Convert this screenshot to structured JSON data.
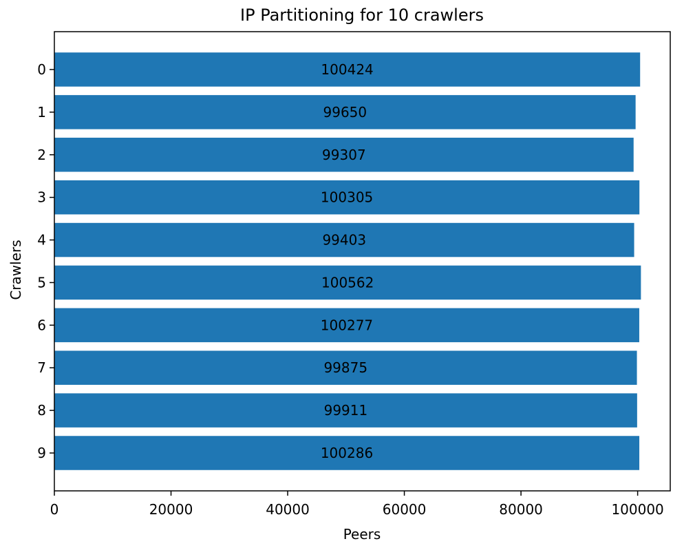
{
  "chart_data": {
    "type": "bar",
    "orientation": "horizontal",
    "title": "IP Partitioning for 10 crawlers",
    "xlabel": "Peers",
    "ylabel": "Crawlers",
    "categories": [
      "0",
      "1",
      "2",
      "3",
      "4",
      "5",
      "6",
      "7",
      "8",
      "9"
    ],
    "values": [
      100424,
      99650,
      99307,
      100305,
      99403,
      100562,
      100277,
      99875,
      99911,
      100286
    ],
    "data_labels": [
      "100424",
      "99650",
      "99307",
      "100305",
      "99403",
      "100562",
      "100277",
      "99875",
      "99911",
      "100286"
    ],
    "xlim": [
      0,
      105590
    ],
    "xticks": [
      0,
      20000,
      40000,
      60000,
      80000,
      100000
    ],
    "xtick_labels": [
      "0",
      "20000",
      "40000",
      "60000",
      "80000",
      "100000"
    ],
    "y_inverted": true,
    "grid": false,
    "legend": "none",
    "colors": {
      "bar": "#1f77b4",
      "text": "#000000",
      "axis": "#000000"
    }
  }
}
